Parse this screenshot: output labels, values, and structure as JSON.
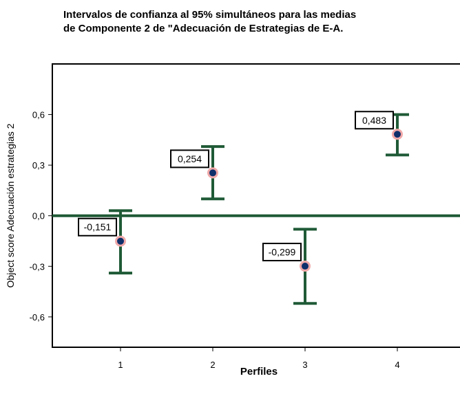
{
  "chart_data": {
    "type": "errorbar",
    "title_lines": [
      "Intervalos de confianza al 95% simultáneos para las medias",
      "de Componente 2 de \"Adecuación de Estrategias de E-A."
    ],
    "xlabel": "Perfiles",
    "ylabel": "Object score   Adecuación estrategias 2",
    "ylim": [
      -0.78,
      0.9
    ],
    "yticks": [
      {
        "value": 0.6,
        "label": "0,6"
      },
      {
        "value": 0.3,
        "label": "0,3"
      },
      {
        "value": 0.0,
        "label": "0,0"
      },
      {
        "value": -0.3,
        "label": "-0,3"
      },
      {
        "value": -0.6,
        "label": "-0,6"
      }
    ],
    "categories": [
      "1",
      "2",
      "3",
      "4"
    ],
    "points": [
      {
        "x": "1",
        "mean": -0.151,
        "label": "-0,151",
        "lower": -0.34,
        "upper": 0.03
      },
      {
        "x": "2",
        "mean": 0.254,
        "label": "0,254",
        "lower": 0.1,
        "upper": 0.41
      },
      {
        "x": "3",
        "mean": -0.299,
        "label": "-0,299",
        "lower": -0.52,
        "upper": -0.08
      },
      {
        "x": "4",
        "mean": 0.483,
        "label": "0,483",
        "lower": 0.36,
        "upper": 0.6
      }
    ],
    "reference_line": 0.0,
    "grid": false,
    "colors": {
      "errorbar": "#1f5a36",
      "marker": "#0f2f6b",
      "marker_halo": "#f0a8a8",
      "reference_line": "#1f5a36"
    }
  }
}
